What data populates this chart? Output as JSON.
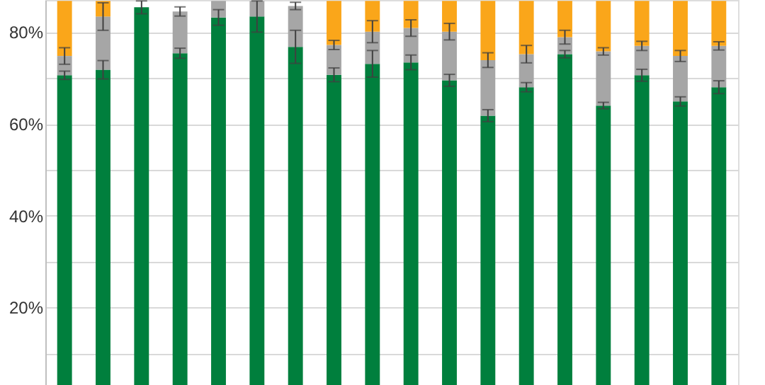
{
  "chart_data": {
    "type": "bar",
    "stacked": true,
    "categories": [
      null,
      null,
      null,
      null,
      null,
      null,
      null,
      null,
      null,
      null,
      null,
      null,
      null,
      null,
      null,
      null,
      null,
      null
    ],
    "series": [
      {
        "color": "#007f3d",
        "values": [
          70.6,
          71.8,
          85.4,
          75.4,
          83.2,
          83.4,
          76.8,
          70.7,
          73.1,
          73.4,
          69.5,
          61.8,
          68.0,
          75.2,
          64.0,
          70.6,
          64.9,
          68.0
        ],
        "errors": [
          0.9,
          2.0,
          1.4,
          1.1,
          1.7,
          3.4,
          3.6,
          1.5,
          2.9,
          1.6,
          1.3,
          1.3,
          1.0,
          0.8,
          0.7,
          1.3,
          1.0,
          1.4
        ]
      },
      {
        "color": "#a6a6a6",
        "values": [
          4.2,
          11.6,
          null,
          9.1,
          3.6,
          3.4,
          8.9,
          6.5,
          7.0,
          7.5,
          10.6,
          12.1,
          7.2,
          3.7,
          11.8,
          6.4,
          9.9,
          9.0
        ],
        "errors": [
          1.8,
          3.0,
          null,
          1.0,
          null,
          null,
          0.8,
          1.0,
          2.4,
          1.8,
          1.8,
          1.6,
          1.9,
          1.5,
          0.8,
          1.0,
          1.2,
          0.9
        ]
      },
      {
        "color": "#faa61a",
        "values": [
          12.0,
          3.4,
          null,
          null,
          null,
          null,
          null,
          9.6,
          6.7,
          5.9,
          6.7,
          12.9,
          11.6,
          7.9,
          11.0,
          9.8,
          12.0,
          9.8
        ]
      }
    ],
    "ylim": [
      3.1,
      87.0
    ],
    "yticks": [
      {
        "value": 10,
        "label": null
      },
      {
        "value": 20,
        "label": "20%"
      },
      {
        "value": 30,
        "label": null
      },
      {
        "value": 40,
        "label": "40%"
      },
      {
        "value": 50,
        "label": null
      },
      {
        "value": 60,
        "label": "60%"
      },
      {
        "value": 70,
        "label": null
      },
      {
        "value": 80,
        "label": "80%"
      }
    ],
    "grid": "y",
    "tick_labels": "y"
  }
}
